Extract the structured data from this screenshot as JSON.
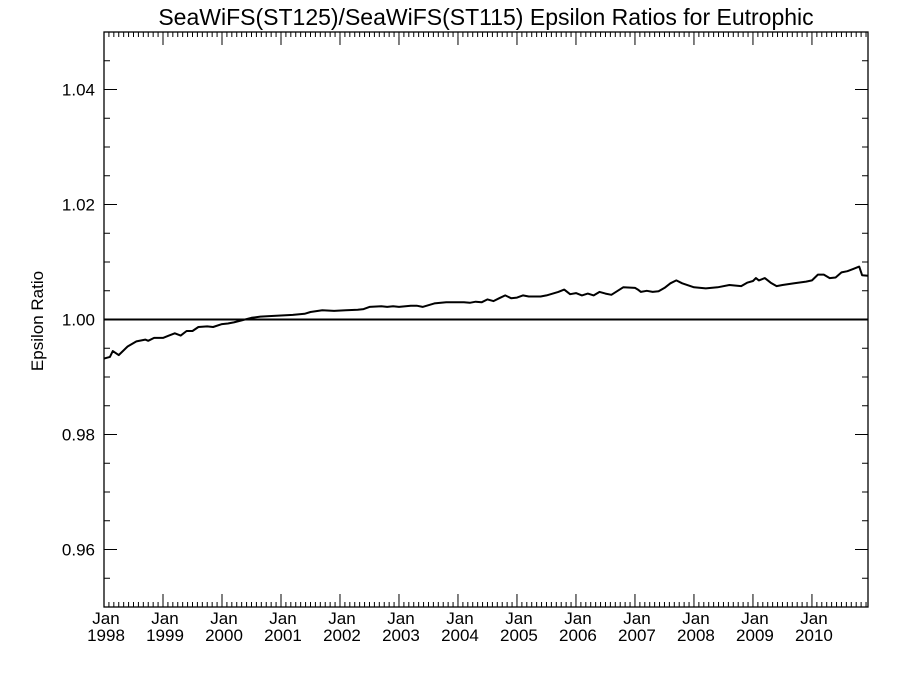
{
  "chart_data": {
    "type": "line",
    "title": "SeaWiFS(ST125)/SeaWiFS(ST115)  Epsilon Ratios for Eutrophic",
    "xlabel": "",
    "ylabel": "Epsilon Ratio",
    "xlim": [
      1998.0,
      2010.95
    ],
    "ylim": [
      0.95,
      1.05
    ],
    "y_ticks": [
      0.96,
      0.98,
      1.0,
      1.02,
      1.04
    ],
    "y_tick_labels": [
      "0.96",
      "0.98",
      "1.00",
      "1.02",
      "1.04"
    ],
    "x_ticks": [
      1998,
      1999,
      2000,
      2001,
      2002,
      2003,
      2004,
      2005,
      2006,
      2007,
      2008,
      2009,
      2010
    ],
    "x_tick_labels": [
      {
        "month": "Jan",
        "year": "1998"
      },
      {
        "month": "Jan",
        "year": "1999"
      },
      {
        "month": "Jan",
        "year": "2000"
      },
      {
        "month": "Jan",
        "year": "2001"
      },
      {
        "month": "Jan",
        "year": "2002"
      },
      {
        "month": "Jan",
        "year": "2003"
      },
      {
        "month": "Jan",
        "year": "2004"
      },
      {
        "month": "Jan",
        "year": "2005"
      },
      {
        "month": "Jan",
        "year": "2006"
      },
      {
        "month": "Jan",
        "year": "2007"
      },
      {
        "month": "Jan",
        "year": "2008"
      },
      {
        "month": "Jan",
        "year": "2009"
      },
      {
        "month": "Jan",
        "year": "2010"
      }
    ],
    "reference_line": 1.0,
    "grid": false,
    "series": [
      {
        "x": [
          1998.0,
          1998.1,
          1998.15,
          1998.25,
          1998.4,
          1998.55,
          1998.7,
          1998.75,
          1998.85,
          1999.0,
          1999.1,
          1999.2,
          1999.3,
          1999.4,
          1999.5,
          1999.6,
          1999.75,
          1999.85,
          2000.0,
          2000.1,
          2000.2,
          2000.35,
          2000.5,
          2000.65,
          2000.8,
          2001.0,
          2001.2,
          2001.4,
          2001.5,
          2001.7,
          2001.9,
          2002.1,
          2002.3,
          2002.4,
          2002.5,
          2002.7,
          2002.8,
          2002.9,
          2003.0,
          2003.2,
          2003.3,
          2003.4,
          2003.6,
          2003.8,
          2004.0,
          2004.1,
          2004.2,
          2004.3,
          2004.4,
          2004.5,
          2004.6,
          2004.7,
          2004.8,
          2004.9,
          2005.0,
          2005.1,
          2005.2,
          2005.4,
          2005.5,
          2005.7,
          2005.8,
          2005.9,
          2006.0,
          2006.1,
          2006.2,
          2006.3,
          2006.4,
          2006.5,
          2006.6,
          2006.8,
          2007.0,
          2007.05,
          2007.1,
          2007.2,
          2007.3,
          2007.4,
          2007.5,
          2007.6,
          2007.7,
          2007.8,
          2008.0,
          2008.2,
          2008.4,
          2008.6,
          2008.8,
          2008.9,
          2009.0,
          2009.05,
          2009.1,
          2009.2,
          2009.3,
          2009.4,
          2009.5,
          2009.7,
          2009.9,
          2010.0,
          2010.1,
          2010.2,
          2010.3,
          2010.4,
          2010.5,
          2010.6,
          2010.7,
          2010.8,
          2010.85,
          2010.95
        ],
        "values": [
          0.9932,
          0.9935,
          0.9945,
          0.9938,
          0.9953,
          0.9962,
          0.9965,
          0.9963,
          0.9968,
          0.9968,
          0.9972,
          0.9976,
          0.9972,
          0.998,
          0.998,
          0.9987,
          0.9988,
          0.9987,
          0.9992,
          0.9993,
          0.9995,
          0.9999,
          1.0003,
          1.0005,
          1.0006,
          1.0007,
          1.0008,
          1.001,
          1.0013,
          1.0016,
          1.0015,
          1.0016,
          1.0017,
          1.0018,
          1.0022,
          1.0023,
          1.0022,
          1.0023,
          1.0022,
          1.0024,
          1.0024,
          1.0022,
          1.0028,
          1.003,
          1.003,
          1.003,
          1.0029,
          1.0031,
          1.003,
          1.0035,
          1.0032,
          1.0037,
          1.0042,
          1.0037,
          1.0038,
          1.0042,
          1.004,
          1.004,
          1.0042,
          1.0048,
          1.0052,
          1.0044,
          1.0046,
          1.0042,
          1.0045,
          1.0042,
          1.0048,
          1.0045,
          1.0043,
          1.0056,
          1.0055,
          1.0052,
          1.0048,
          1.005,
          1.0048,
          1.0049,
          1.0055,
          1.0063,
          1.0068,
          1.0063,
          1.0056,
          1.0054,
          1.0056,
          1.006,
          1.0058,
          1.0064,
          1.0067,
          1.0072,
          1.0068,
          1.0072,
          1.0064,
          1.0058,
          1.006,
          1.0063,
          1.0066,
          1.0068,
          1.0078,
          1.0078,
          1.0072,
          1.0073,
          1.0082,
          1.0084,
          1.0088,
          1.0092,
          1.0077,
          1.0076
        ]
      }
    ]
  }
}
